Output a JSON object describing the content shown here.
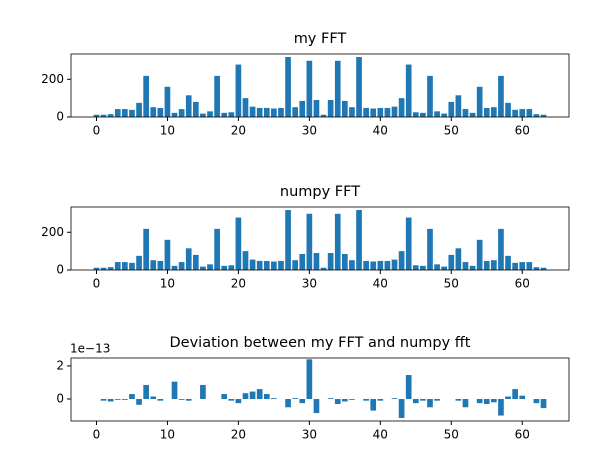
{
  "chart_data": [
    {
      "type": "bar",
      "title": "my FFT",
      "color": "#1f77b4",
      "x": [
        0,
        1,
        2,
        3,
        4,
        5,
        6,
        7,
        8,
        9,
        10,
        11,
        12,
        13,
        14,
        15,
        16,
        17,
        18,
        19,
        20,
        21,
        22,
        23,
        24,
        25,
        26,
        27,
        28,
        29,
        30,
        31,
        32,
        33,
        34,
        35,
        36,
        37,
        38,
        39,
        40,
        41,
        42,
        43,
        44,
        45,
        46,
        47,
        48,
        49,
        50,
        51,
        52,
        53,
        54,
        55,
        56,
        57,
        58,
        59,
        60,
        61,
        62,
        63
      ],
      "values": [
        12,
        12,
        15,
        42,
        42,
        38,
        75,
        218,
        52,
        48,
        160,
        22,
        42,
        115,
        80,
        18,
        30,
        218,
        22,
        25,
        278,
        100,
        55,
        48,
        48,
        45,
        48,
        318,
        52,
        85,
        298,
        90,
        12,
        90,
        298,
        85,
        52,
        318,
        48,
        45,
        48,
        48,
        55,
        100,
        278,
        25,
        22,
        218,
        30,
        18,
        80,
        115,
        42,
        22,
        160,
        48,
        52,
        218,
        75,
        38,
        42,
        42,
        15,
        12
      ],
      "xlim": [
        -3.59,
        66.59
      ],
      "xticks": [
        0,
        10,
        20,
        30,
        40,
        50,
        60
      ],
      "ylim": [
        0,
        334
      ],
      "yticks": [
        0,
        200
      ]
    },
    {
      "type": "bar",
      "title": "numpy FFT",
      "color": "#1f77b4",
      "x": [
        0,
        1,
        2,
        3,
        4,
        5,
        6,
        7,
        8,
        9,
        10,
        11,
        12,
        13,
        14,
        15,
        16,
        17,
        18,
        19,
        20,
        21,
        22,
        23,
        24,
        25,
        26,
        27,
        28,
        29,
        30,
        31,
        32,
        33,
        34,
        35,
        36,
        37,
        38,
        39,
        40,
        41,
        42,
        43,
        44,
        45,
        46,
        47,
        48,
        49,
        50,
        51,
        52,
        53,
        54,
        55,
        56,
        57,
        58,
        59,
        60,
        61,
        62,
        63
      ],
      "values": [
        12,
        12,
        15,
        42,
        42,
        38,
        75,
        218,
        52,
        48,
        160,
        22,
        42,
        115,
        80,
        18,
        30,
        218,
        22,
        25,
        278,
        100,
        55,
        48,
        48,
        45,
        48,
        318,
        52,
        85,
        298,
        90,
        12,
        90,
        298,
        85,
        52,
        318,
        48,
        45,
        48,
        48,
        55,
        100,
        278,
        25,
        22,
        218,
        30,
        18,
        80,
        115,
        42,
        22,
        160,
        48,
        52,
        218,
        75,
        38,
        42,
        42,
        15,
        12
      ],
      "xlim": [
        -3.59,
        66.59
      ],
      "xticks": [
        0,
        10,
        20,
        30,
        40,
        50,
        60
      ],
      "ylim": [
        0,
        334
      ],
      "yticks": [
        0,
        200
      ]
    },
    {
      "type": "bar",
      "title": "Deviation between my FFT and numpy fft",
      "color": "#1f77b4",
      "offset_label": "1e−13",
      "x": [
        0,
        1,
        2,
        3,
        4,
        5,
        6,
        7,
        8,
        9,
        10,
        11,
        12,
        13,
        14,
        15,
        16,
        17,
        18,
        19,
        20,
        21,
        22,
        23,
        24,
        25,
        26,
        27,
        28,
        29,
        30,
        31,
        32,
        33,
        34,
        35,
        36,
        37,
        38,
        39,
        40,
        41,
        42,
        43,
        44,
        45,
        46,
        47,
        48,
        49,
        50,
        51,
        52,
        53,
        54,
        55,
        56,
        57,
        58,
        59,
        60,
        61,
        62,
        63
      ],
      "values": [
        0,
        -0.1,
        -0.15,
        -0.05,
        -0.05,
        0.3,
        -0.35,
        0.85,
        0.15,
        -0.1,
        0,
        1.05,
        -0.05,
        -0.1,
        0,
        0.85,
        0,
        0,
        0.3,
        -0.1,
        -0.25,
        0.35,
        0.45,
        0.6,
        0.3,
        0.05,
        0,
        -0.5,
        0.05,
        -0.25,
        2.4,
        -0.85,
        0,
        0.05,
        -0.3,
        -0.15,
        -0.05,
        0,
        -0.1,
        -0.7,
        -0.1,
        0,
        0.05,
        -1.15,
        1.45,
        -0.25,
        -0.1,
        -0.5,
        -0.1,
        0,
        0,
        -0.1,
        -0.5,
        0,
        -0.25,
        -0.3,
        -0.2,
        -1.0,
        0.15,
        0.6,
        0.2,
        0,
        -0.25,
        -0.55
      ],
      "xlim": [
        -3.59,
        66.59
      ],
      "xticks": [
        0,
        10,
        20,
        30,
        40,
        50,
        60
      ],
      "ylim": [
        -1.33,
        2.48
      ],
      "yticks": [
        0,
        2
      ]
    }
  ]
}
